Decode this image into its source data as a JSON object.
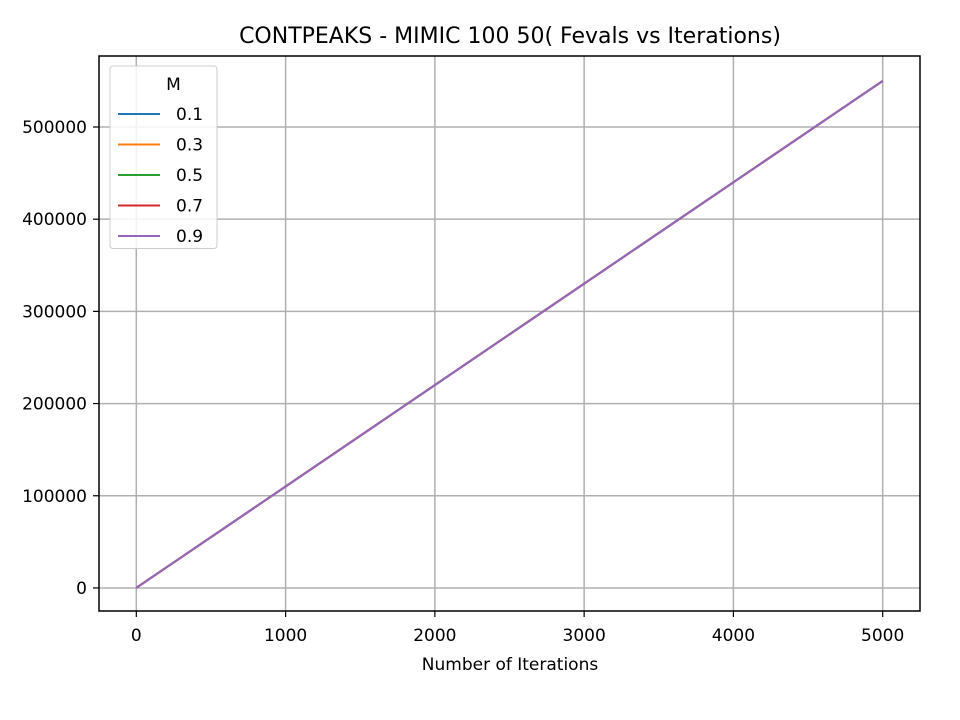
{
  "chart_data": {
    "type": "line",
    "title": "CONTPEAKS - MIMIC 100 50( Fevals vs Iterations)",
    "xlabel": "Number of Iterations",
    "ylabel": "",
    "xlim": [
      -250,
      5250
    ],
    "ylim": [
      -25000,
      577000
    ],
    "xticks": [
      0,
      1000,
      2000,
      3000,
      4000,
      5000
    ],
    "xtick_labels": [
      "0",
      "1000",
      "2000",
      "3000",
      "4000",
      "5000"
    ],
    "yticks": [
      0,
      100000,
      200000,
      300000,
      400000,
      500000
    ],
    "ytick_labels": [
      "0",
      "100000",
      "200000",
      "300000",
      "400000",
      "500000"
    ],
    "grid": true,
    "legend": {
      "title": "M",
      "placement": "upper-left"
    },
    "series": [
      {
        "name": "0.1",
        "color": "#1f77b4",
        "x": [
          0,
          5000
        ],
        "y": [
          100,
          550000
        ]
      },
      {
        "name": "0.3",
        "color": "#ff7f0e",
        "x": [
          0,
          5000
        ],
        "y": [
          100,
          550000
        ]
      },
      {
        "name": "0.5",
        "color": "#2ca02c",
        "x": [
          0,
          5000
        ],
        "y": [
          100,
          550000
        ]
      },
      {
        "name": "0.7",
        "color": "#d62728",
        "x": [
          0,
          5000
        ],
        "y": [
          100,
          550000
        ]
      },
      {
        "name": "0.9",
        "color": "#9467bd",
        "x": [
          0,
          5000
        ],
        "y": [
          100,
          550000
        ]
      }
    ]
  }
}
